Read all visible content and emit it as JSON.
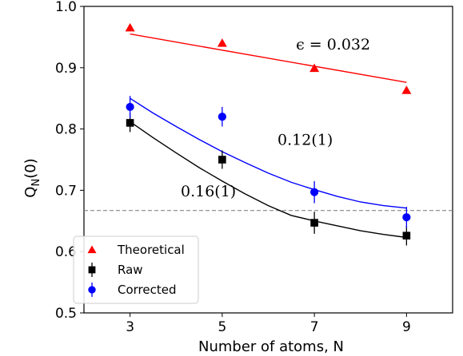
{
  "chart_data": {
    "type": "scatter",
    "xlabel": "Number of atoms, N",
    "ylabel_main": "Q",
    "ylabel_sub": "N",
    "ylabel_tail": "(0)",
    "xlim": [
      2,
      10
    ],
    "ylim": [
      0.5,
      1.0
    ],
    "x_ticks": [
      3,
      5,
      7,
      9
    ],
    "y_ticks": [
      0.5,
      0.6,
      0.7,
      0.8,
      0.9,
      1.0
    ],
    "y_tick_labels": [
      "0.5",
      "0.6",
      "0.7",
      "0.8",
      "0.9",
      "1.0"
    ],
    "grid": false,
    "legend_position": "lower-left",
    "reference_line": {
      "y": 0.667,
      "style": "dashed",
      "color": "#777777"
    },
    "series": [
      {
        "name": "Theoretical",
        "marker": "triangle",
        "color": "#ff0000",
        "x": [
          3,
          5,
          7,
          9
        ],
        "y": [
          0.965,
          0.94,
          0.899,
          0.863
        ],
        "fit": {
          "x": [
            3,
            9
          ],
          "y": [
            0.955,
            0.876
          ]
        }
      },
      {
        "name": "Raw",
        "marker": "square",
        "color": "#000000",
        "x": [
          3,
          5,
          7,
          9
        ],
        "y": [
          0.81,
          0.75,
          0.647,
          0.626
        ],
        "err": [
          0.015,
          0.015,
          0.018,
          0.016
        ],
        "fit": {
          "x": [
            3,
            3.5,
            4,
            4.5,
            5,
            5.5,
            6,
            6.5,
            7,
            7.5,
            8,
            8.5,
            9
          ],
          "y": [
            0.812,
            0.786,
            0.761,
            0.737,
            0.715,
            0.694,
            0.675,
            0.659,
            0.65,
            0.642,
            0.634,
            0.628,
            0.623
          ]
        }
      },
      {
        "name": "Corrected",
        "marker": "circle",
        "color": "#0000ff",
        "x": [
          3,
          5,
          7,
          9
        ],
        "y": [
          0.836,
          0.82,
          0.697,
          0.656
        ],
        "err": [
          0.018,
          0.016,
          0.018,
          0.017
        ],
        "fit": {
          "x": [
            3,
            3.5,
            4,
            4.5,
            5,
            5.5,
            6,
            6.5,
            7,
            7.5,
            8,
            8.5,
            9
          ],
          "y": [
            0.85,
            0.826,
            0.804,
            0.783,
            0.763,
            0.745,
            0.728,
            0.713,
            0.701,
            0.69,
            0.681,
            0.675,
            0.671
          ]
        }
      }
    ],
    "annotations": [
      {
        "text": "ϵ = 0.032",
        "x": 6.6,
        "y": 0.93
      },
      {
        "text": "0.12(1)",
        "x": 6.2,
        "y": 0.774
      },
      {
        "text": "0.16(1)",
        "x": 4.1,
        "y": 0.69
      }
    ]
  }
}
